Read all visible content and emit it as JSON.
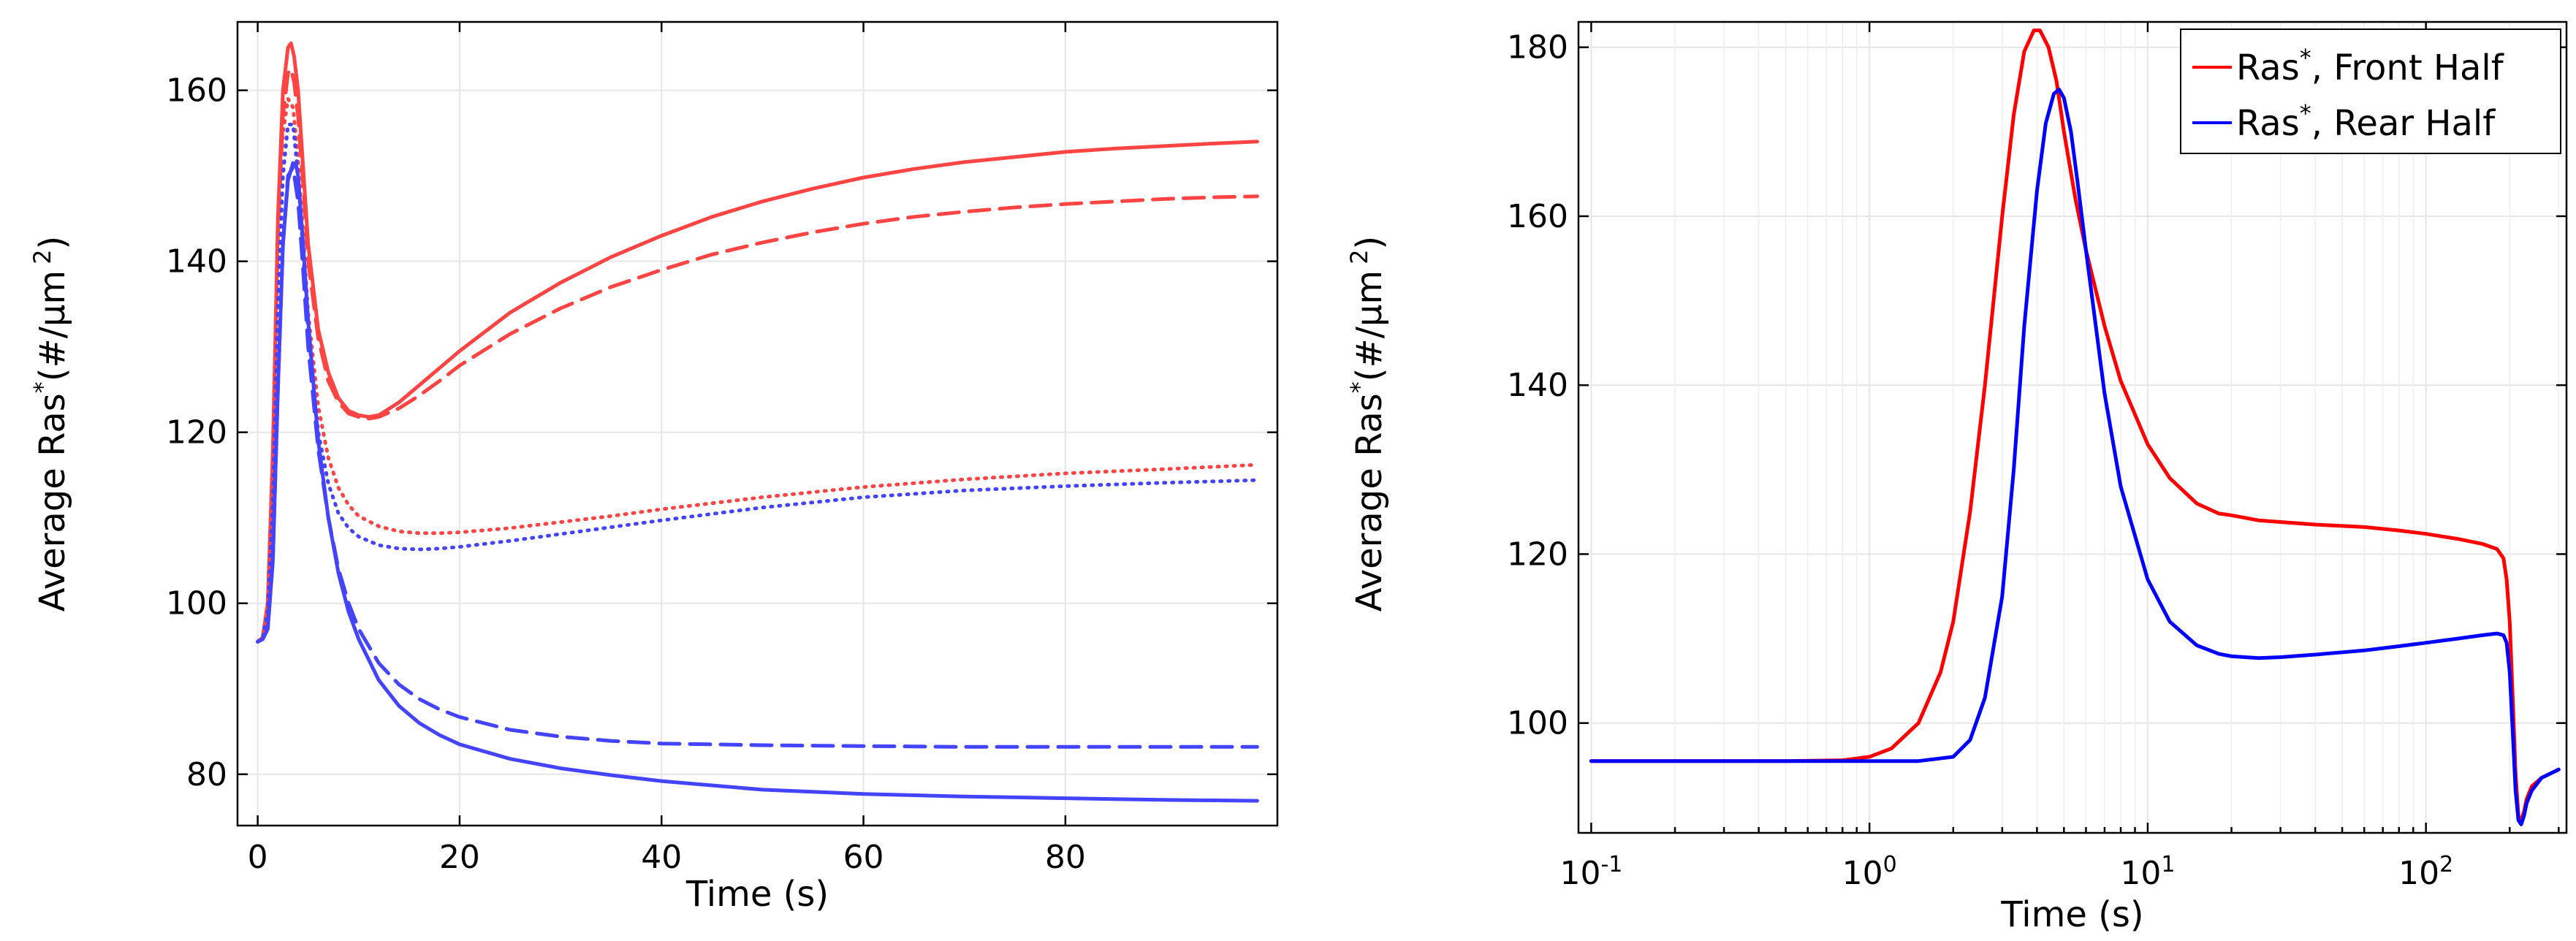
{
  "chart_data": [
    {
      "type": "line",
      "xlabel": "Time (s)",
      "ylabel": "Average Ras*(#/μm 2)",
      "ylabel_main": "Average Ras",
      "ylabel_sup": "*",
      "ylabel_unit": "(#/μm",
      "ylabel_exp": "2",
      "ylabel_close": ")",
      "xlim": [
        -2,
        101
      ],
      "ylim": [
        74,
        168
      ],
      "x_ticks": [
        0,
        20,
        40,
        60,
        80
      ],
      "x_tick_labels": [
        "0",
        "20",
        "40",
        "60",
        "80"
      ],
      "y_ticks": [
        80,
        100,
        120,
        140,
        160
      ],
      "y_tick_labels": [
        "80",
        "100",
        "120",
        "140",
        "160"
      ],
      "grid": true,
      "series": [
        {
          "name": "red-solid",
          "color": "#ff4444",
          "style": "solid",
          "x": [
            0,
            0.5,
            1,
            1.5,
            2,
            2.5,
            3,
            3.3,
            3.6,
            4,
            4.5,
            5,
            6,
            7,
            8,
            9,
            10,
            11,
            12,
            14,
            16,
            18,
            20,
            25,
            30,
            35,
            40,
            45,
            50,
            55,
            60,
            65,
            70,
            75,
            80,
            85,
            90,
            95,
            99
          ],
          "values": [
            95.5,
            96,
            100,
            118,
            145,
            160,
            165,
            165.5,
            164,
            160,
            151,
            142,
            132,
            127,
            124,
            122.5,
            122,
            121.8,
            122,
            123.5,
            125.5,
            127.5,
            129.5,
            134,
            137.5,
            140.5,
            143,
            145.2,
            147,
            148.5,
            149.8,
            150.8,
            151.6,
            152.2,
            152.8,
            153.2,
            153.5,
            153.8,
            154
          ]
        },
        {
          "name": "red-dashed",
          "color": "#ff4444",
          "style": "dashed",
          "x": [
            0,
            0.5,
            1,
            1.5,
            2,
            2.5,
            3,
            3.3,
            3.6,
            4,
            4.5,
            5,
            6,
            7,
            8,
            9,
            10,
            11,
            12,
            14,
            16,
            18,
            20,
            25,
            30,
            35,
            40,
            45,
            50,
            55,
            60,
            65,
            70,
            75,
            80,
            85,
            90,
            95,
            99
          ],
          "values": [
            95.5,
            96,
            100,
            117,
            143,
            157,
            162,
            162.5,
            161,
            157,
            149,
            140,
            131,
            126,
            123.5,
            122.2,
            121.8,
            121.6,
            121.8,
            122.8,
            124.3,
            126,
            127.8,
            131.5,
            134.5,
            137,
            139,
            140.8,
            142.2,
            143.4,
            144.4,
            145.2,
            145.8,
            146.3,
            146.7,
            147,
            147.3,
            147.5,
            147.6
          ]
        },
        {
          "name": "red-dotted",
          "color": "#ff4444",
          "style": "dotted",
          "x": [
            0,
            0.5,
            1,
            1.5,
            2,
            2.5,
            3,
            3.5,
            4,
            4.5,
            5,
            6,
            7,
            8,
            9,
            10,
            12,
            14,
            16,
            18,
            20,
            25,
            30,
            35,
            40,
            50,
            60,
            70,
            80,
            90,
            99
          ],
          "values": [
            95.5,
            96,
            100,
            117,
            142,
            155,
            159,
            158,
            152,
            143,
            134,
            123,
            117,
            113.5,
            111.5,
            110.2,
            109,
            108.4,
            108.2,
            108.2,
            108.3,
            108.8,
            109.5,
            110.2,
            111,
            112.4,
            113.6,
            114.5,
            115.2,
            115.7,
            116.2
          ]
        },
        {
          "name": "blue-dotted",
          "color": "#4444ff",
          "style": "dotted",
          "x": [
            0,
            0.5,
            1,
            1.5,
            2,
            2.5,
            3,
            3.5,
            4,
            4.5,
            5,
            6,
            7,
            8,
            9,
            10,
            12,
            14,
            16,
            18,
            20,
            25,
            30,
            35,
            40,
            50,
            60,
            70,
            80,
            90,
            99
          ],
          "values": [
            95.5,
            96,
            99,
            112,
            135,
            150,
            156,
            156,
            150,
            141,
            132,
            120,
            114,
            110.5,
            108.8,
            107.8,
            106.8,
            106.4,
            106.3,
            106.4,
            106.6,
            107.3,
            108.1,
            108.9,
            109.7,
            111.2,
            112.4,
            113.2,
            113.7,
            114.1,
            114.4
          ]
        },
        {
          "name": "blue-dashed",
          "color": "#4444ff",
          "style": "dashed",
          "x": [
            0,
            0.5,
            1,
            1.5,
            2,
            2.5,
            3,
            3.5,
            4,
            4.5,
            5,
            6,
            7,
            8,
            9,
            10,
            12,
            14,
            16,
            18,
            20,
            25,
            30,
            35,
            40,
            50,
            60,
            70,
            80,
            90,
            99
          ],
          "values": [
            95.5,
            95.8,
            97,
            105,
            125,
            142,
            150,
            151,
            147,
            139,
            130,
            118,
            110,
            104,
            100,
            97,
            93,
            90.5,
            88.8,
            87.6,
            86.7,
            85.2,
            84.4,
            83.9,
            83.6,
            83.4,
            83.3,
            83.2,
            83.2,
            83.2,
            83.2
          ]
        },
        {
          "name": "blue-solid",
          "color": "#4444ff",
          "style": "solid",
          "x": [
            0,
            0.5,
            1,
            1.5,
            2,
            2.5,
            3,
            3.5,
            3.8,
            4,
            4.5,
            5,
            6,
            7,
            8,
            9,
            10,
            12,
            14,
            16,
            18,
            20,
            25,
            30,
            35,
            40,
            50,
            60,
            70,
            80,
            90,
            99
          ],
          "values": [
            95.5,
            95.8,
            97,
            105,
            125,
            142,
            149.5,
            151.5,
            151.3,
            150,
            142,
            133,
            119,
            110,
            103.5,
            99,
            95.8,
            91,
            88,
            86,
            84.6,
            83.5,
            81.8,
            80.7,
            79.9,
            79.2,
            78.2,
            77.7,
            77.4,
            77.2,
            77,
            76.9
          ]
        }
      ]
    },
    {
      "type": "line",
      "xscale": "log",
      "xlabel": "Time (s)",
      "ylabel": "Average Ras*(#/μm 2)",
      "ylabel_main": "Average Ras",
      "ylabel_sup": "*",
      "ylabel_unit": "(#/μm",
      "ylabel_exp": "2",
      "ylabel_close": ")",
      "xlim": [
        0.09,
        320
      ],
      "ylim": [
        87,
        183
      ],
      "x_ticks": [
        0.1,
        1,
        10,
        100
      ],
      "x_tick_base": "10",
      "x_tick_exponents": [
        "-1",
        "0",
        "1",
        "2"
      ],
      "y_ticks": [
        100,
        120,
        140,
        160,
        180
      ],
      "y_tick_labels": [
        "100",
        "120",
        "140",
        "160",
        "180"
      ],
      "grid": true,
      "legend": {
        "position": "top-right",
        "entries": [
          {
            "label_main": "Ras",
            "label_sup": "*",
            "label_rest": ", Front Half",
            "color": "#ff0000"
          },
          {
            "label_main": "Ras",
            "label_sup": "*",
            "label_rest": ", Rear Half",
            "color": "#0000ff"
          }
        ]
      },
      "series": [
        {
          "name": "Ras*, Front Half",
          "color": "#ff0000",
          "style": "solid",
          "x": [
            0.1,
            0.2,
            0.5,
            0.8,
            1.0,
            1.2,
            1.5,
            1.8,
            2.0,
            2.3,
            2.6,
            3.0,
            3.3,
            3.6,
            3.9,
            4.1,
            4.4,
            4.7,
            5.0,
            5.5,
            6,
            7,
            8,
            10,
            12,
            15,
            18,
            20,
            25,
            30,
            40,
            60,
            80,
            100,
            130,
            160,
            180,
            190,
            195,
            200,
            205,
            210,
            215,
            220,
            225,
            230,
            240,
            260,
            300
          ],
          "values": [
            95.5,
            95.5,
            95.5,
            95.6,
            96,
            97,
            100,
            106,
            112,
            125,
            140,
            160,
            172,
            179.5,
            182,
            182,
            180,
            176,
            170,
            162,
            156,
            147,
            140.5,
            133,
            129,
            126,
            124.8,
            124.6,
            124,
            123.8,
            123.5,
            123.2,
            122.8,
            122.4,
            121.8,
            121.2,
            120.6,
            119.5,
            117,
            112,
            103,
            94,
            89,
            88.5,
            89.5,
            91,
            92.5,
            93.5,
            94.5
          ]
        },
        {
          "name": "Ras*, Rear Half",
          "color": "#0000ff",
          "style": "solid",
          "x": [
            0.1,
            0.5,
            1.0,
            1.5,
            2.0,
            2.3,
            2.6,
            3.0,
            3.3,
            3.6,
            4.0,
            4.3,
            4.6,
            4.8,
            5.0,
            5.3,
            5.6,
            6,
            7,
            8,
            10,
            12,
            15,
            18,
            20,
            25,
            30,
            40,
            60,
            80,
            100,
            130,
            160,
            180,
            190,
            195,
            200,
            205,
            210,
            215,
            220,
            225,
            230,
            240,
            260,
            300
          ],
          "values": [
            95.5,
            95.5,
            95.5,
            95.5,
            96,
            98,
            103,
            115,
            130,
            147,
            163,
            171,
            174.5,
            175,
            174,
            170,
            164,
            156,
            139,
            128,
            117,
            112,
            109.2,
            108.2,
            107.9,
            107.7,
            107.8,
            108.1,
            108.6,
            109.1,
            109.5,
            110,
            110.4,
            110.6,
            110.4,
            109.5,
            106,
            99,
            92,
            88.5,
            88,
            89,
            90.5,
            92,
            93.5,
            94.5
          ]
        }
      ]
    }
  ]
}
